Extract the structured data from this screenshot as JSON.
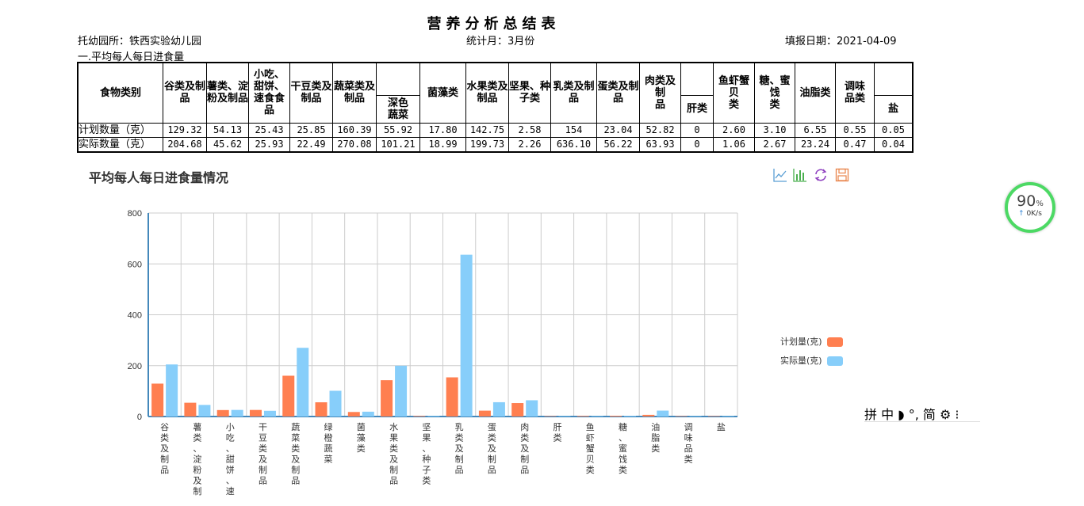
{
  "report": {
    "title": "营养分析总结表",
    "kindergarten": "托幼园所：铁西实验幼儿园",
    "stat_month": "统计月：3月份",
    "fill_date": "填报日期：2021-04-09",
    "section": "一.平均每人每日进食量"
  },
  "table": {
    "corner": "食物类别",
    "headers": [
      "谷类及制品",
      "薯类、淀粉及制品",
      "小吃、甜饼、速食食品",
      "干豆类及制品",
      "蔬菜类及制品",
      "深色蔬菜",
      "菌藻类",
      "水果类及制品",
      "坚果、种子类",
      "乳类及制品",
      "蛋类及制品",
      "肉类及制品",
      "肝类",
      "鱼虾蟹贝类",
      "糖、蜜饯类",
      "油脂类",
      "调味品类",
      "盐"
    ],
    "rows": [
      {
        "label": "计划数量（克）",
        "values": [
          "129.32",
          "54.13",
          "25.43",
          "25.85",
          "160.39",
          "55.92",
          "17.80",
          "142.75",
          "2.58",
          "154",
          "23.04",
          "52.82",
          "0",
          "2.60",
          "3.10",
          "6.55",
          "0.55",
          "0.05"
        ]
      },
      {
        "label": "实际数量（克）",
        "values": [
          "204.68",
          "45.62",
          "25.93",
          "22.49",
          "270.08",
          "101.21",
          "18.99",
          "199.73",
          "2.26",
          "636.10",
          "56.22",
          "63.93",
          "0",
          "1.06",
          "2.67",
          "23.24",
          "0.47",
          "0.04"
        ]
      }
    ]
  },
  "chart_title": "平均每人每日进食量情况",
  "toolbox": [
    "line-chart-icon",
    "bar-chart-icon",
    "restore-icon",
    "save-image-icon"
  ],
  "chart_data": {
    "type": "bar",
    "categories": [
      "谷类及制品",
      "薯类、淀粉及制",
      "小吃、甜饼、速",
      "干豆类及制品",
      "蔬菜类及制品",
      "绿橙蔬菜",
      "菌藻类",
      "水果类及制品",
      "坚果、种子类",
      "乳类及制品",
      "蛋类及制品",
      "肉类及制品",
      "肝类",
      "鱼虾蟹贝类",
      "糖、蜜饯类",
      "油脂类",
      "调味品类",
      "盐"
    ],
    "series": [
      {
        "name": "计划量(克)",
        "color": "#ff7f50",
        "values": [
          129.32,
          54.13,
          25.43,
          25.85,
          160.39,
          55.92,
          17.8,
          142.75,
          2.58,
          154,
          23.04,
          52.82,
          0,
          2.6,
          3.1,
          6.55,
          0.55,
          0.05
        ]
      },
      {
        "name": "实际量(克)",
        "color": "#87cefa",
        "values": [
          204.68,
          45.62,
          25.93,
          22.49,
          270.08,
          101.21,
          18.99,
          199.73,
          2.26,
          636.1,
          56.22,
          63.93,
          0,
          1.06,
          2.67,
          23.24,
          0.47,
          0.04
        ]
      }
    ],
    "ylim": [
      0,
      800
    ],
    "yticks": [
      "0",
      "200",
      "400",
      "600",
      "800"
    ],
    "grid": true,
    "legend_position": "right"
  },
  "widget": {
    "percent": "90",
    "percent_unit": "%",
    "speed": "0K/s"
  },
  "ime": "拼 中 ◗ °, 简 ⚙ ⁝"
}
